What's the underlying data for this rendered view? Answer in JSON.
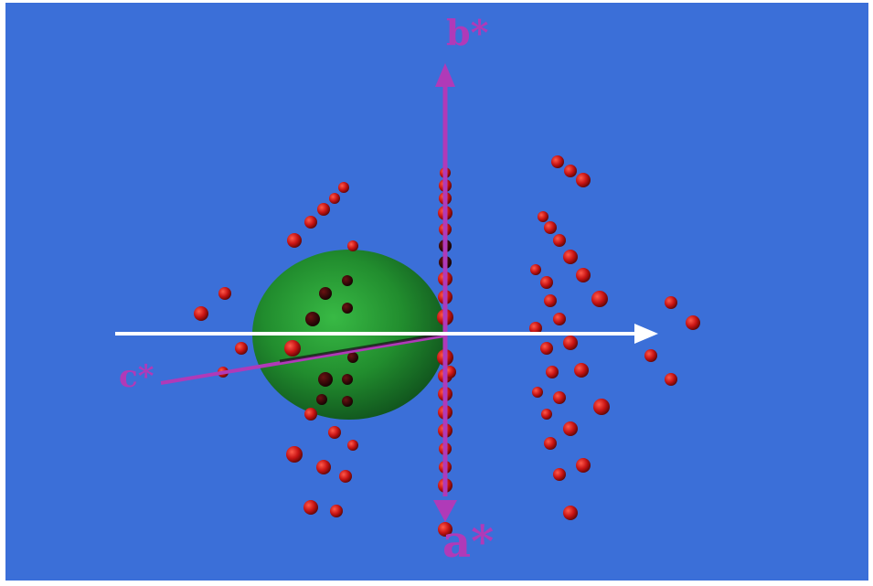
{
  "scene": {
    "background_color": "#3b6fd8",
    "axes": [
      {
        "label": "b*",
        "color": "#b03ab8"
      },
      {
        "label": "c*",
        "color": "#b03ab8"
      },
      {
        "label": "a*",
        "color": "#b03ab8"
      }
    ],
    "beam_arrow_color": "#ffffff",
    "sphere_color": "#1f8f1f",
    "reflection_color": "#c81414"
  }
}
